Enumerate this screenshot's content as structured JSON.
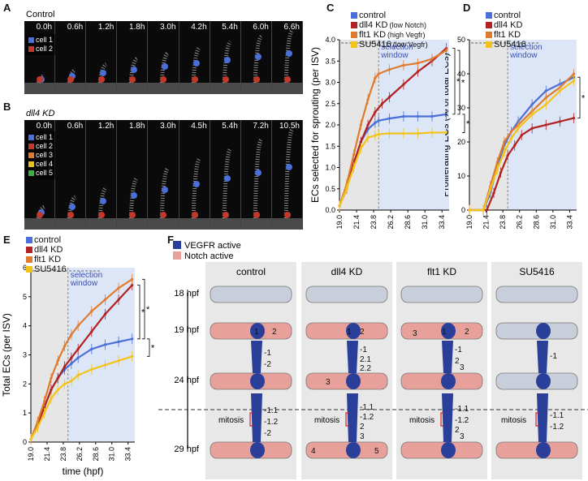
{
  "panels": {
    "A": "A",
    "B": "B",
    "C": "C",
    "D": "D",
    "E": "E",
    "F": "F"
  },
  "micro": {
    "A": {
      "condition": "Control",
      "times": [
        "0.0h",
        "0.6h",
        "1.2h",
        "1.8h",
        "3.0h",
        "4.2h",
        "5.4h",
        "6.0h",
        "6.6h"
      ],
      "legend": [
        {
          "label": "cell 1",
          "color": "#4a6fd8"
        },
        {
          "label": "cell 2",
          "color": "#c0392b"
        }
      ]
    },
    "B": {
      "condition": "dll4 KD",
      "times": [
        "0.0h",
        "0.6h",
        "1.2h",
        "1.8h",
        "3.0h",
        "4.5h",
        "5.4h",
        "7.2h",
        "10.5h"
      ],
      "legend": [
        {
          "label": "cell 1",
          "color": "#4a6fd8"
        },
        {
          "label": "cell 2",
          "color": "#c0392b"
        },
        {
          "label": "cell 3",
          "color": "#e07a2e"
        },
        {
          "label": "cell 4",
          "color": "#e8c21a"
        },
        {
          "label": "cell 5",
          "color": "#3cb043"
        }
      ]
    }
  },
  "series_legend": [
    {
      "label": "control",
      "note": "",
      "color": "#4a6fd8"
    },
    {
      "label": "dll4 KD",
      "note": "(low Notch)",
      "color": "#b22222"
    },
    {
      "label": "flt1 KD",
      "note": "(high Vegfr)",
      "color": "#e07a2e"
    },
    {
      "label": "SU5416",
      "note": "(low Vegfr)",
      "color": "#f2c318"
    }
  ],
  "selection_window": "selection window",
  "chart_data": [
    {
      "id": "C",
      "type": "line",
      "xlabel": "time (hpf)",
      "ylabel": "ECs selected for sprouting (per ISV)",
      "xlim": [
        19.0,
        34.4
      ],
      "ylim": [
        0,
        4.0
      ],
      "xticks": [
        19.0,
        21.4,
        23.8,
        26.2,
        28.6,
        31.0,
        33.4
      ],
      "yticks": [
        0,
        0.5,
        1.0,
        1.5,
        2.0,
        2.5,
        3.0,
        3.5,
        4.0
      ],
      "selection_start": 24.5,
      "series": [
        {
          "name": "control",
          "x": [
            19.0,
            20.0,
            21.0,
            22.0,
            23.0,
            24.0,
            24.5,
            26.0,
            28.0,
            30.0,
            32.0,
            34.0
          ],
          "y": [
            0.1,
            0.5,
            1.1,
            1.6,
            1.9,
            2.05,
            2.1,
            2.15,
            2.2,
            2.2,
            2.2,
            2.25
          ]
        },
        {
          "name": "dll4 KD",
          "x": [
            19.0,
            20.0,
            21.0,
            22.0,
            23.0,
            24.0,
            25.0,
            26.0,
            28.0,
            30.0,
            32.0,
            34.0
          ],
          "y": [
            0.1,
            0.5,
            1.1,
            1.6,
            2.0,
            2.3,
            2.5,
            2.65,
            2.95,
            3.25,
            3.5,
            3.8
          ]
        },
        {
          "name": "flt1 KD",
          "x": [
            19.0,
            20.0,
            21.0,
            22.0,
            23.0,
            24.0,
            24.5,
            26.0,
            28.0,
            30.0,
            32.0,
            34.0
          ],
          "y": [
            0.1,
            0.6,
            1.3,
            2.0,
            2.6,
            3.1,
            3.2,
            3.3,
            3.4,
            3.45,
            3.55,
            3.75
          ]
        },
        {
          "name": "SU5416",
          "x": [
            19.0,
            20.0,
            21.0,
            22.0,
            23.0,
            24.0,
            24.5,
            26.0,
            28.0,
            30.0,
            32.0,
            34.0
          ],
          "y": [
            0.1,
            0.5,
            1.0,
            1.45,
            1.7,
            1.75,
            1.78,
            1.8,
            1.8,
            1.8,
            1.82,
            1.82
          ]
        }
      ]
    },
    {
      "id": "D",
      "type": "line",
      "xlabel": "time (hpf)",
      "ylabel": "Proliferating ECs (% of total ECs)",
      "xlim": [
        19.0,
        34.4
      ],
      "ylim": [
        0,
        50
      ],
      "xticks": [
        19.0,
        21.4,
        23.8,
        26.2,
        28.6,
        31.0,
        33.4
      ],
      "yticks": [
        0,
        10,
        20,
        30,
        40,
        50
      ],
      "selection_start": 24.5,
      "series": [
        {
          "name": "control",
          "x": [
            19.0,
            21.0,
            22.0,
            23.0,
            24.0,
            25.0,
            26.0,
            28.0,
            30.0,
            32.0,
            34.0
          ],
          "y": [
            0,
            0,
            5,
            13,
            19,
            23,
            26,
            31,
            35,
            37,
            39
          ]
        },
        {
          "name": "dll4 KD",
          "x": [
            19.0,
            21.5,
            22.5,
            23.5,
            24.5,
            25.5,
            26.5,
            28.0,
            30.0,
            32.0,
            34.0
          ],
          "y": [
            0,
            0,
            5,
            11,
            16,
            19,
            22,
            24,
            25,
            26,
            27
          ]
        },
        {
          "name": "flt1 KD",
          "x": [
            19.0,
            21.0,
            22.0,
            23.0,
            24.0,
            25.0,
            26.0,
            28.0,
            30.0,
            32.0,
            34.0
          ],
          "y": [
            0,
            0,
            7,
            14,
            20,
            23,
            25,
            29,
            33,
            36,
            40
          ]
        },
        {
          "name": "SU5416",
          "x": [
            19.0,
            21.0,
            22.0,
            23.0,
            24.0,
            25.0,
            26.0,
            28.0,
            30.0,
            32.0,
            34.0
          ],
          "y": [
            0,
            0,
            6,
            12,
            17,
            21,
            24,
            28,
            31,
            35,
            38
          ]
        }
      ]
    },
    {
      "id": "E",
      "type": "line",
      "xlabel": "time (hpf)",
      "ylabel": "Total ECs (per ISV)",
      "xlim": [
        19.0,
        34.4
      ],
      "ylim": [
        0,
        6
      ],
      "xticks": [
        19.0,
        21.4,
        23.8,
        26.2,
        28.6,
        31.0,
        33.4
      ],
      "yticks": [
        0,
        1,
        2,
        3,
        4,
        5,
        6
      ],
      "selection_start": 24.5,
      "series": [
        {
          "name": "control",
          "x": [
            19.0,
            20.0,
            21.0,
            22.0,
            23.0,
            24.0,
            25.0,
            26.0,
            28.0,
            30.0,
            32.0,
            34.0
          ],
          "y": [
            0.1,
            0.6,
            1.2,
            1.8,
            2.2,
            2.5,
            2.7,
            2.9,
            3.2,
            3.35,
            3.45,
            3.55
          ]
        },
        {
          "name": "dll4 KD",
          "x": [
            19.0,
            20.0,
            21.0,
            22.0,
            23.0,
            24.0,
            25.0,
            26.0,
            28.0,
            30.0,
            32.0,
            34.0
          ],
          "y": [
            0.1,
            0.6,
            1.2,
            1.8,
            2.2,
            2.6,
            2.9,
            3.2,
            3.8,
            4.4,
            4.9,
            5.4
          ]
        },
        {
          "name": "flt1 KD",
          "x": [
            19.0,
            20.0,
            21.0,
            22.0,
            23.0,
            24.0,
            25.0,
            26.0,
            28.0,
            30.0,
            32.0,
            34.0
          ],
          "y": [
            0.1,
            0.7,
            1.4,
            2.2,
            2.8,
            3.3,
            3.7,
            4.0,
            4.5,
            4.9,
            5.3,
            5.6
          ]
        },
        {
          "name": "SU5416",
          "x": [
            19.0,
            20.0,
            21.0,
            22.0,
            23.0,
            24.0,
            25.0,
            26.0,
            28.0,
            30.0,
            32.0,
            34.0
          ],
          "y": [
            0.1,
            0.5,
            1.0,
            1.5,
            1.8,
            2.0,
            2.1,
            2.3,
            2.5,
            2.65,
            2.8,
            2.95
          ]
        }
      ]
    }
  ],
  "schematic": {
    "legend": [
      {
        "label": "VEGFR active",
        "color": "#2a3f9a"
      },
      {
        "label": "Notch active",
        "color": "#e8a19a"
      }
    ],
    "columns": [
      "control",
      "dll4 KD",
      "flt1 KD",
      "SU5416"
    ],
    "rows": [
      "18 hpf",
      "19 hpf",
      "24 hpf",
      "29 hpf"
    ],
    "mitosis": "mitosis",
    "labels": {
      "c19": [
        "1",
        "2"
      ],
      "c24": [
        "-1",
        "-2"
      ],
      "c29": [
        "-1.1",
        "-1.2",
        "-2"
      ],
      "d19": [
        "1",
        "2"
      ],
      "d24": [
        "-1",
        "2.1",
        "2.2",
        "3"
      ],
      "d29": [
        "-1.1",
        "-1.2",
        "2",
        "3",
        "4",
        "5"
      ],
      "f19": [
        "1",
        "2",
        "3"
      ],
      "f24": [
        "-1",
        "2",
        "3"
      ],
      "f29": [
        "-1.1",
        "-1.2",
        "2",
        "3"
      ],
      "s24": [
        "-1"
      ],
      "s29": [
        "-1.1",
        "-1.2"
      ]
    }
  }
}
